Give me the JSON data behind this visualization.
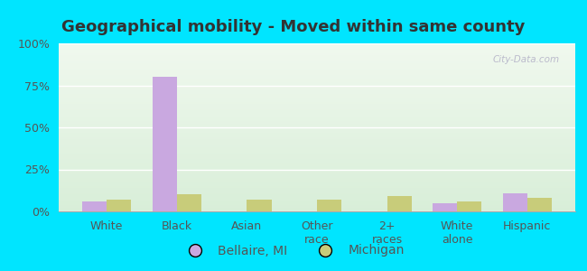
{
  "title": "Geographical mobility - Moved within same county",
  "categories": [
    "White",
    "Black",
    "Asian",
    "Other\nrace",
    "2+\nraces",
    "White\nalone",
    "Hispanic"
  ],
  "bellaire_values": [
    6,
    80,
    0,
    0,
    0,
    5,
    11
  ],
  "michigan_values": [
    7,
    10,
    7,
    7,
    9,
    6,
    8
  ],
  "bellaire_color": "#c9a8e0",
  "michigan_color": "#c8cc7a",
  "bar_width": 0.35,
  "ylim": [
    0,
    100
  ],
  "yticks": [
    0,
    25,
    50,
    75,
    100
  ],
  "ytick_labels": [
    "0%",
    "25%",
    "50%",
    "75%",
    "100%"
  ],
  "legend_labels": [
    "Bellaire, MI",
    "Michigan"
  ],
  "background_outer": "#00e5ff",
  "title_color": "#333333",
  "title_fontsize": 13,
  "label_fontsize": 9,
  "watermark_text": "City-Data.com",
  "watermark_color": "#bbbbcc"
}
